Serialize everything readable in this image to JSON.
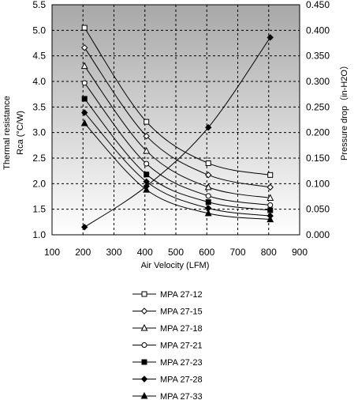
{
  "chart_data": {
    "type": "line",
    "xlabel": "Air Velocity (LFM)",
    "ylabel_left": [
      "Thermal resistance",
      "Rca (°C/W)"
    ],
    "ylabel_right": "Pressure drop（in-H2O）",
    "xlim": [
      100,
      900
    ],
    "ylim_left": [
      1.0,
      5.5
    ],
    "ylim_right": [
      0.0,
      0.45
    ],
    "x_ticks": [
      "100",
      "200",
      "300",
      "400",
      "500",
      "600",
      "700",
      "800",
      "900"
    ],
    "y_left_ticks": [
      "1.0",
      "1.5",
      "2.0",
      "2.5",
      "3.0",
      "3.5",
      "4.0",
      "4.5",
      "5.0",
      "5.5"
    ],
    "y_right_ticks": [
      "0.000",
      "0.050",
      "0.100",
      "0.150",
      "0.200",
      "0.250",
      "0.300",
      "0.350",
      "0.400",
      "0.450"
    ],
    "grid": true,
    "legend_position": "bottom",
    "series": [
      {
        "name": "MPA 27-12",
        "marker": "square-open",
        "axis": "left",
        "x": [
          205,
          405,
          605,
          805
        ],
        "y": [
          5.05,
          3.21,
          2.4,
          2.17
        ]
      },
      {
        "name": "MPA 27-15",
        "marker": "diamond-open",
        "axis": "left",
        "x": [
          205,
          405,
          605,
          805
        ],
        "y": [
          4.66,
          2.93,
          2.17,
          1.93
        ]
      },
      {
        "name": "MPA 27-18",
        "marker": "triangle-open",
        "axis": "left",
        "x": [
          205,
          405,
          605,
          805
        ],
        "y": [
          4.3,
          2.64,
          1.93,
          1.72
        ]
      },
      {
        "name": "MPA 27-21",
        "marker": "circle-open",
        "axis": "left",
        "x": [
          205,
          405,
          605,
          805
        ],
        "y": [
          3.97,
          2.39,
          1.76,
          1.58
        ]
      },
      {
        "name": "MPA 27-23",
        "marker": "square-filled",
        "axis": "left",
        "x": [
          205,
          405,
          605,
          805
        ],
        "y": [
          3.66,
          2.18,
          1.64,
          1.48
        ]
      },
      {
        "name": "MPA 27-28",
        "marker": "diamond-filled",
        "axis": "left",
        "x": [
          205,
          405,
          605,
          805
        ],
        "y": [
          3.39,
          2.04,
          1.52,
          1.37
        ]
      },
      {
        "name": "MPA 27-33",
        "marker": "triangle-filled",
        "axis": "left",
        "x": [
          205,
          405,
          605,
          805
        ],
        "y": [
          3.18,
          1.88,
          1.42,
          1.3
        ]
      },
      {
        "marker": "diamond-filled",
        "axis": "right",
        "x": [
          205,
          405,
          605,
          805
        ],
        "y": [
          0.015,
          0.095,
          0.21,
          0.386
        ]
      }
    ],
    "colors": {
      "plot_bg_top": "#a8a8a8",
      "plot_bg_bottom": "#ffffff",
      "grid": "#000000",
      "line": "#000000"
    }
  }
}
